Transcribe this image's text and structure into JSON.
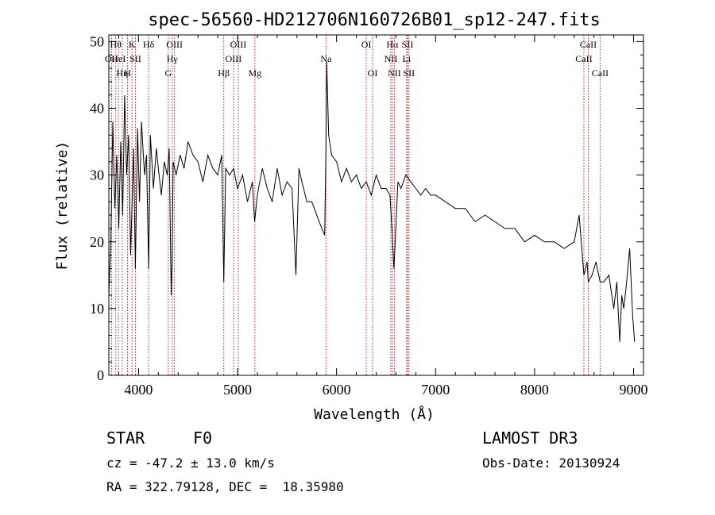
{
  "chart_data": {
    "type": "line",
    "title": "spec-56560-HD212706N160726B01_sp12-247.fits",
    "xlabel": "Wavelength (Å)",
    "ylabel": "Flux (relative)",
    "xlim": [
      3700,
      9100
    ],
    "ylim": [
      0,
      51
    ],
    "xticks": [
      4000,
      5000,
      6000,
      7000,
      8000,
      9000
    ],
    "yticks": [
      0,
      10,
      20,
      30,
      40,
      50
    ],
    "grid": false,
    "series": [
      {
        "color": "#000000",
        "x": [
          3700,
          3720,
          3740,
          3760,
          3780,
          3800,
          3820,
          3840,
          3860,
          3880,
          3900,
          3920,
          3935,
          3950,
          3968,
          3990,
          4010,
          4030,
          4060,
          4080,
          4102,
          4120,
          4150,
          4180,
          4200,
          4230,
          4260,
          4290,
          4310,
          4330,
          4340,
          4350,
          4380,
          4420,
          4460,
          4500,
          4550,
          4600,
          4650,
          4700,
          4750,
          4800,
          4840,
          4861,
          4880,
          4920,
          4960,
          5000,
          5050,
          5100,
          5150,
          5172,
          5200,
          5250,
          5300,
          5350,
          5400,
          5450,
          5500,
          5550,
          5590,
          5620,
          5650,
          5700,
          5750,
          5800,
          5850,
          5880,
          5893,
          5900,
          5920,
          5950,
          6000,
          6050,
          6100,
          6150,
          6200,
          6250,
          6300,
          6350,
          6400,
          6450,
          6500,
          6540,
          6563,
          6580,
          6620,
          6650,
          6700,
          6750,
          6800,
          6850,
          6900,
          6950,
          7000,
          7100,
          7200,
          7300,
          7400,
          7500,
          7600,
          7700,
          7800,
          7900,
          8000,
          8100,
          8200,
          8300,
          8400,
          8450,
          8498,
          8530,
          8542,
          8580,
          8620,
          8662,
          8700,
          8750,
          8800,
          8830,
          8860,
          8880,
          8900,
          8930,
          8960,
          8990,
          9010
        ],
        "y": [
          12,
          20,
          38,
          25,
          33,
          22,
          35,
          24,
          42,
          30,
          36,
          18,
          26,
          34,
          16,
          37,
          26,
          38,
          30,
          33,
          16,
          36,
          28,
          34,
          31,
          27,
          32,
          30,
          34,
          12,
          18,
          32,
          30,
          33,
          31,
          35,
          33,
          32,
          29,
          33,
          31,
          30,
          33,
          14,
          31,
          30,
          31,
          28,
          30,
          26,
          29,
          23,
          27,
          31,
          28,
          26,
          31,
          27,
          29,
          28,
          15,
          31,
          29,
          26,
          26,
          24,
          22,
          21,
          34,
          47,
          36,
          33,
          32,
          29,
          31,
          29,
          30,
          28,
          29,
          27,
          30,
          28,
          28,
          27,
          21,
          16,
          29,
          28,
          30,
          29,
          28,
          27,
          28,
          27,
          27,
          26,
          25,
          25,
          23,
          24,
          23,
          22,
          22,
          20,
          21,
          20,
          20,
          19,
          20,
          24,
          15,
          17,
          14,
          15,
          17,
          14,
          14,
          15,
          10,
          14,
          5,
          12,
          10,
          14,
          19,
          9,
          5
        ]
      }
    ],
    "line_markers": [
      {
        "wavelength": 3727,
        "row": 1,
        "label": "OII"
      },
      {
        "wavelength": 3770,
        "row": 0,
        "label": "Hθ"
      },
      {
        "wavelength": 3798,
        "row": 1,
        "label": "HeI"
      },
      {
        "wavelength": 3835,
        "row": 2,
        "label": "Hη"
      },
      {
        "wavelength": 3889,
        "row": 2,
        "label": "H"
      },
      {
        "wavelength": 3934,
        "row": 0,
        "label": "K"
      },
      {
        "wavelength": 3969,
        "row": 1,
        "label": "SII"
      },
      {
        "wavelength": 4102,
        "row": 0,
        "label": "Hδ"
      },
      {
        "wavelength": 4300,
        "row": 2,
        "label": "G"
      },
      {
        "wavelength": 4340,
        "row": 1,
        "label": "Hγ"
      },
      {
        "wavelength": 4363,
        "row": 0,
        "label": "OIII"
      },
      {
        "wavelength": 4861,
        "row": 2,
        "label": "Hβ"
      },
      {
        "wavelength": 4959,
        "row": 1,
        "label": "OIII"
      },
      {
        "wavelength": 5007,
        "row": 0,
        "label": "OIII"
      },
      {
        "wavelength": 5175,
        "row": 2,
        "label": "Mg"
      },
      {
        "wavelength": 5893,
        "row": 1,
        "label": "Na"
      },
      {
        "wavelength": 6300,
        "row": 0,
        "label": "OI"
      },
      {
        "wavelength": 6364,
        "row": 2,
        "label": "OI"
      },
      {
        "wavelength": 6548,
        "row": 1,
        "label": "NII"
      },
      {
        "wavelength": 6563,
        "row": 0,
        "label": "Hα"
      },
      {
        "wavelength": 6584,
        "row": 2,
        "label": "NII"
      },
      {
        "wavelength": 6708,
        "row": 1,
        "label": "Li"
      },
      {
        "wavelength": 6717,
        "row": 0,
        "label": "SII"
      },
      {
        "wavelength": 6731,
        "row": 2,
        "label": "SII"
      },
      {
        "wavelength": 8498,
        "row": 1,
        "label": "CaII"
      },
      {
        "wavelength": 8542,
        "row": 0,
        "label": "CaII"
      },
      {
        "wavelength": 8662,
        "row": 2,
        "label": "CaII"
      }
    ],
    "marker_color": "#b22222"
  },
  "info": {
    "object_class": "STAR",
    "subclass": "F0",
    "survey": "LAMOST DR3",
    "cz": "cz = -47.2 ± 13.0 km/s",
    "obs_date": "Obs-Date: 20130924",
    "coords": "RA = 322.79128, DEC =  18.35980"
  }
}
